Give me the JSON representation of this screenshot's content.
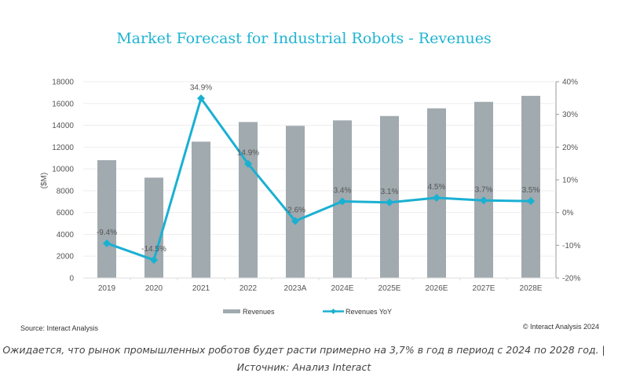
{
  "chart_data": {
    "type": "bar+line",
    "title": "Market Forecast for Industrial Robots - Revenues",
    "categories": [
      "2019",
      "2020",
      "2021",
      "2022",
      "2023A",
      "2024E",
      "2025E",
      "2026E",
      "2027E",
      "2028E"
    ],
    "ylabel": "($M)",
    "ylim": [
      0,
      18000
    ],
    "yticks": [
      "0",
      "2000",
      "4000",
      "6000",
      "8000",
      "10000",
      "12000",
      "14000",
      "16000",
      "18000"
    ],
    "y2lim": [
      -20,
      40
    ],
    "y2ticks": [
      "-20%",
      "-10%",
      "0%",
      "10%",
      "20%",
      "30%",
      "40%"
    ],
    "grid": true,
    "legend_position": "bottom",
    "series": [
      {
        "name": "Revenues",
        "type": "bar",
        "color": "#a0aaaf",
        "values": [
          10800,
          9200,
          12500,
          14300,
          13950,
          14450,
          14850,
          15550,
          16150,
          16700
        ]
      },
      {
        "name": "Revenues YoY",
        "type": "line",
        "axis": "right",
        "color": "#1ab0d2",
        "values": [
          -9.4,
          -14.5,
          34.9,
          14.9,
          -2.6,
          3.4,
          3.1,
          4.5,
          3.7,
          3.5
        ],
        "labels": [
          "-9.4%",
          "-14.5%",
          "34.9%",
          "14.9%",
          "-2.6%",
          "3.4%",
          "3.1%",
          "4.5%",
          "3.7%",
          "3.5%"
        ]
      }
    ]
  },
  "footer": {
    "source": "Source: Interact Analysis",
    "copyright": "© Interact Analysis 2024"
  },
  "caption": {
    "line1": "Ожидается, что рынок промышленных роботов будет расти примерно на 3,7% в год в период с 2024 по 2028 год. |",
    "line2": "Источник: Анализ Interact"
  }
}
